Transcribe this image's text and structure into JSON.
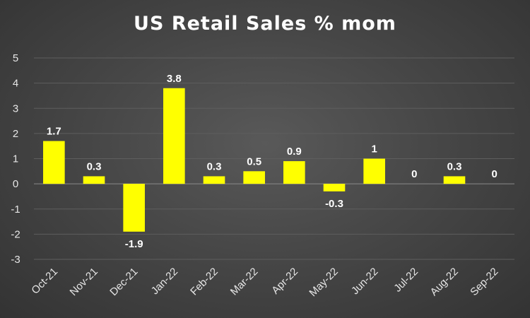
{
  "chart_data": {
    "type": "bar",
    "title": "US Retail Sales % mom",
    "categories": [
      "Oct-21",
      "Nov-21",
      "Dec-21",
      "Jan-22",
      "Feb-22",
      "Mar-22",
      "Apr-22",
      "May-22",
      "Jun-22",
      "Jul-22",
      "Aug-22",
      "Sep-22"
    ],
    "values": [
      1.7,
      0.3,
      -1.9,
      3.8,
      0.3,
      0.5,
      0.9,
      -0.3,
      1,
      0,
      0.3,
      0
    ],
    "data_labels": [
      "1.7",
      "0.3",
      "-1.9",
      "3.8",
      "0.3",
      "0.5",
      "0.9",
      "-0.3",
      "1",
      "0",
      "0.3",
      "0"
    ],
    "ylim": [
      -3,
      5
    ],
    "yticks": [
      "-3",
      "-2",
      "-1",
      "0",
      "1",
      "2",
      "3",
      "4",
      "5"
    ],
    "xlabel": "",
    "ylabel": "",
    "grid": true,
    "legend": "none",
    "bar_color": "#FFFF00",
    "background_color": "#404040"
  }
}
